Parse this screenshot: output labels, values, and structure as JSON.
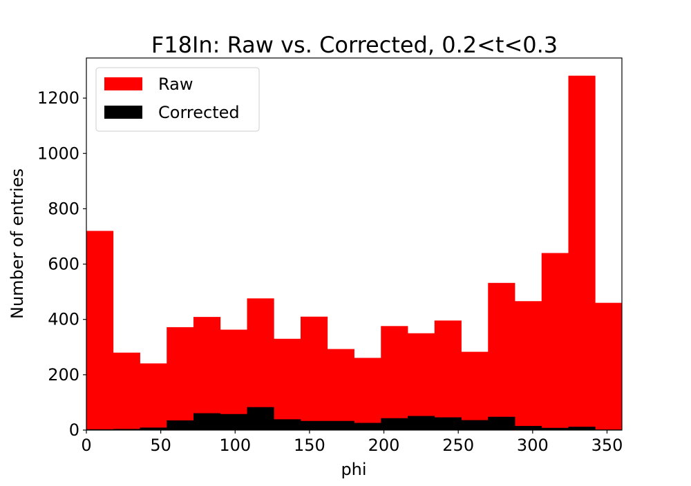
{
  "chart_data": {
    "type": "bar",
    "title": "F18In: Raw vs. Corrected, 0.2<t<0.3",
    "xlabel": "phi",
    "ylabel": "Number of entries",
    "xlim": [
      0,
      360
    ],
    "ylim": [
      0,
      1345
    ],
    "xticks": [
      0,
      50,
      100,
      150,
      200,
      250,
      300,
      350
    ],
    "yticks": [
      0,
      200,
      400,
      600,
      800,
      1000,
      1200
    ],
    "bin_edges": [
      0,
      18,
      36,
      54,
      72,
      90,
      108,
      126,
      144,
      162,
      180,
      198,
      216,
      234,
      252,
      270,
      288,
      306,
      324,
      342,
      360
    ],
    "grid": false,
    "legend_position": "top-left",
    "series": [
      {
        "name": "Raw",
        "color": "#ff0000",
        "values": [
          720,
          280,
          241,
          372,
          409,
          363,
          476,
          330,
          410,
          293,
          261,
          376,
          350,
          396,
          283,
          532,
          466,
          640,
          1281,
          460
        ]
      },
      {
        "name": "Corrected",
        "color": "#000000",
        "values": [
          3,
          4,
          9,
          35,
          61,
          58,
          83,
          39,
          33,
          33,
          26,
          43,
          51,
          46,
          36,
          48,
          15,
          8,
          12,
          2
        ]
      }
    ]
  }
}
